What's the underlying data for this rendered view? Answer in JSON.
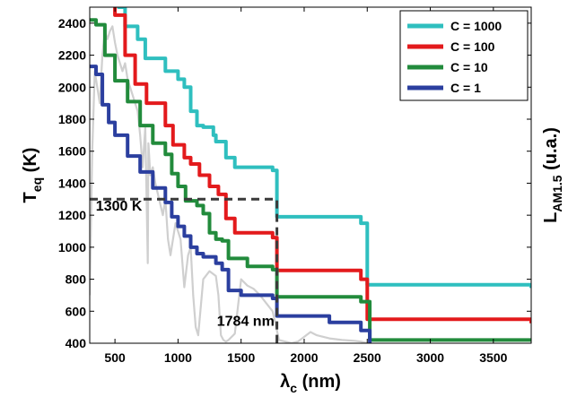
{
  "chart_data": {
    "type": "line",
    "xlabel": {
      "main": "λ",
      "sub": "c",
      "rest": " (nm)"
    },
    "ylabel": {
      "main": "T",
      "sub": "eq",
      "rest": " (K)"
    },
    "y2label": {
      "main": "L",
      "sub": "AM1.5",
      "rest": " (u.a.)"
    },
    "xlim": [
      300,
      3800
    ],
    "ylim": [
      400,
      2500
    ],
    "xticks": [
      500,
      1000,
      1500,
      2000,
      2500,
      3000,
      3500
    ],
    "yticks": [
      400,
      600,
      800,
      1000,
      1200,
      1400,
      1600,
      1800,
      2000,
      2200,
      2400
    ],
    "grid": false,
    "legend_position": "top-right",
    "series": [
      {
        "name": "C = 1000",
        "color": "#2fbfbf",
        "x": [
          300,
          530,
          580,
          680,
          740,
          900,
          1000,
          1050,
          1100,
          1150,
          1200,
          1280,
          1300,
          1380,
          1450,
          1750,
          1784,
          2450,
          2500,
          3800
        ],
        "y": [
          2700,
          2500,
          2380,
          2300,
          2180,
          2100,
          2050,
          2000,
          1850,
          1760,
          1750,
          1700,
          1660,
          1560,
          1500,
          1480,
          1190,
          1150,
          765,
          745
        ]
      },
      {
        "name": "C = 100",
        "color": "#e31a1c",
        "x": [
          300,
          400,
          500,
          580,
          660,
          750,
          900,
          960,
          1050,
          1100,
          1170,
          1250,
          1320,
          1380,
          1450,
          1750,
          1784,
          2450,
          2500,
          3800
        ],
        "y": [
          2700,
          2600,
          2450,
          2200,
          2020,
          1900,
          1760,
          1640,
          1560,
          1520,
          1450,
          1380,
          1330,
          1180,
          1090,
          1060,
          855,
          800,
          550,
          525
        ]
      },
      {
        "name": "C = 10",
        "color": "#228b3c",
        "x": [
          300,
          350,
          420,
          500,
          600,
          700,
          800,
          900,
          950,
          1000,
          1060,
          1150,
          1200,
          1250,
          1300,
          1350,
          1400,
          1550,
          1750,
          1784,
          2450,
          2520,
          3800
        ],
        "y": [
          2420,
          2390,
          2200,
          2040,
          1910,
          1760,
          1650,
          1580,
          1460,
          1380,
          1290,
          1260,
          1210,
          1090,
          1050,
          1040,
          930,
          880,
          860,
          690,
          660,
          420,
          410
        ]
      },
      {
        "name": "C = 1",
        "color": "#2b3f9f",
        "x": [
          300,
          350,
          400,
          450,
          500,
          600,
          700,
          800,
          900,
          950,
          1000,
          1050,
          1100,
          1150,
          1200,
          1300,
          1350,
          1400,
          1500,
          1750,
          1784,
          2200,
          2450,
          2520
        ],
        "y": [
          2130,
          2080,
          1890,
          1780,
          1700,
          1570,
          1470,
          1370,
          1280,
          1190,
          1130,
          1070,
          1000,
          960,
          940,
          900,
          860,
          730,
          700,
          680,
          570,
          530,
          480,
          400
        ]
      }
    ],
    "background_spectrum": {
      "name": "AM1.5",
      "color": "#cfcfcf",
      "x": [
        300,
        320,
        340,
        360,
        380,
        400,
        420,
        440,
        460,
        480,
        500,
        520,
        540,
        560,
        580,
        600,
        620,
        640,
        660,
        680,
        700,
        720,
        740,
        760,
        765,
        780,
        800,
        820,
        850,
        880,
        900,
        920,
        940,
        960,
        980,
        1000,
        1020,
        1050,
        1080,
        1100,
        1120,
        1140,
        1160,
        1200,
        1250,
        1300,
        1320,
        1340,
        1360,
        1380,
        1400,
        1450,
        1500,
        1550,
        1600,
        1650,
        1700,
        1750,
        1784,
        1800,
        1850,
        1900,
        1950,
        2000,
        2050,
        2100,
        2200,
        2300,
        2400,
        2450,
        2500
      ],
      "y": [
        700,
        1600,
        2100,
        2000,
        1900,
        2200,
        2350,
        2300,
        2350,
        2380,
        2280,
        2200,
        2150,
        2100,
        2150,
        2050,
        2000,
        1950,
        1900,
        1850,
        1700,
        1500,
        1750,
        900,
        1650,
        1450,
        1500,
        1400,
        1300,
        1200,
        1300,
        1050,
        950,
        1050,
        1150,
        1100,
        1050,
        750,
        950,
        1000,
        700,
        500,
        450,
        800,
        850,
        820,
        700,
        450,
        420,
        410,
        420,
        460,
        800,
        760,
        740,
        700,
        650,
        600,
        480,
        420,
        410,
        400,
        410,
        440,
        470,
        450,
        430,
        420,
        415,
        410,
        400
      ]
    },
    "annotations": [
      {
        "text": "1300 K",
        "x": 320,
        "y": 1230
      },
      {
        "text": "1784 nm",
        "x": 1280,
        "y": 510
      }
    ],
    "reference_lines": {
      "x": 1784,
      "y": 1300
    }
  }
}
